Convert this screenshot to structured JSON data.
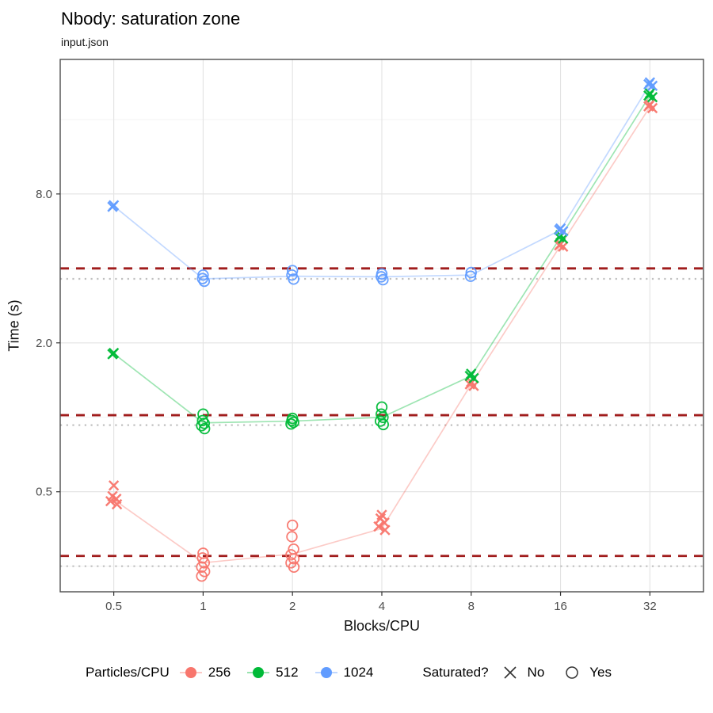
{
  "chart_data": {
    "type": "scatter",
    "title": "Nbody: saturation zone",
    "subtitle": "input.json",
    "xlabel": "Blocks/CPU",
    "ylabel": "Time (s)",
    "x_scale": "log2",
    "y_scale": "log10",
    "xlim": [
      0.33,
      48.5
    ],
    "ylim": [
      0.197,
      28.0
    ],
    "x_ticks": {
      "values": [
        0.5,
        1,
        2,
        4,
        8,
        16,
        32
      ],
      "labels": [
        "0.5",
        "1",
        "2",
        "4",
        "8",
        "16",
        "32"
      ]
    },
    "y_ticks": {
      "values": [
        0.5,
        2.0,
        8.0
      ],
      "labels": [
        "0.5",
        "2.0",
        "8.0"
      ]
    },
    "y_minor_gridlines": [
      0.25,
      1,
      4,
      16
    ],
    "grid": true,
    "legend": {
      "position": "bottom",
      "color_title": "Particles/CPU",
      "shape_title": "Saturated?",
      "no_label": "No",
      "yes_label": "Yes"
    },
    "colors": {
      "grid_major": "#e3e3e3",
      "grid_minor": "#f0f0f0",
      "panel_border": "#4d4d4d",
      "dashed_line": "#a01c1c",
      "dotted_line": "#c0c0c0",
      "tick_text": "#4d4d4d",
      "tick_mark": "#333333"
    },
    "series": [
      {
        "name": "256",
        "color": "#F8766D",
        "threshold_dashed": 0.275,
        "baseline_dotted": 0.25,
        "trend": [
          0.465,
          0.258,
          0.28,
          0.355,
          1.36,
          4.95,
          18.0
        ],
        "groups": [
          {
            "x": 0.5,
            "saturated": false,
            "times": [
              0.53,
              0.48,
              0.468,
              0.458,
              0.445
            ]
          },
          {
            "x": 1,
            "saturated": true,
            "times": [
              0.282,
              0.27,
              0.258,
              0.248,
              0.238,
              0.228
            ]
          },
          {
            "x": 2,
            "saturated": true,
            "times": [
              0.366,
              0.329,
              0.293,
              0.278,
              0.268,
              0.258,
              0.248
            ]
          },
          {
            "x": 4,
            "saturated": false,
            "times": [
              0.403,
              0.39,
              0.375,
              0.362,
              0.35
            ]
          },
          {
            "x": 8,
            "saturated": false,
            "times": [
              1.39,
              1.36,
              1.34
            ]
          },
          {
            "x": 16,
            "saturated": false,
            "times": [
              5.02,
              4.96,
              4.9
            ]
          },
          {
            "x": 32,
            "saturated": false,
            "times": [
              18.4,
              18.1,
              17.8
            ]
          }
        ]
      },
      {
        "name": "512",
        "color": "#00BA38",
        "threshold_dashed": 1.02,
        "baseline_dotted": 0.93,
        "trend": [
          1.81,
          0.95,
          0.965,
          1.0,
          1.47,
          5.35,
          20.0
        ],
        "groups": [
          {
            "x": 0.5,
            "saturated": false,
            "times": [
              1.82,
              1.8
            ]
          },
          {
            "x": 1,
            "saturated": true,
            "times": [
              1.03,
              0.97,
              0.945,
              0.925,
              0.9
            ]
          },
          {
            "x": 2,
            "saturated": true,
            "times": [
              0.99,
              0.97,
              0.955,
              0.94
            ]
          },
          {
            "x": 4,
            "saturated": true,
            "times": [
              1.1,
              1.03,
              1.0,
              0.965,
              0.935
            ]
          },
          {
            "x": 8,
            "saturated": false,
            "times": [
              1.5,
              1.47,
              1.44
            ]
          },
          {
            "x": 16,
            "saturated": false,
            "times": [
              5.45,
              5.35,
              5.28
            ]
          },
          {
            "x": 32,
            "saturated": false,
            "times": [
              20.4,
              20.0,
              19.7
            ]
          }
        ]
      },
      {
        "name": "1024",
        "color": "#619CFF",
        "threshold_dashed": 4.0,
        "baseline_dotted": 3.63,
        "trend": [
          7.15,
          3.63,
          3.72,
          3.7,
          3.76,
          5.72,
          22.2
        ],
        "groups": [
          {
            "x": 0.5,
            "saturated": false,
            "times": [
              7.2,
              7.1
            ]
          },
          {
            "x": 1,
            "saturated": true,
            "times": [
              3.76,
              3.64,
              3.55
            ]
          },
          {
            "x": 2,
            "saturated": true,
            "times": [
              3.92,
              3.76,
              3.62
            ]
          },
          {
            "x": 4,
            "saturated": true,
            "times": [
              3.8,
              3.7,
              3.6
            ]
          },
          {
            "x": 8,
            "saturated": true,
            "times": [
              3.85,
              3.72
            ]
          },
          {
            "x": 16,
            "saturated": false,
            "times": [
              5.8,
              5.72,
              5.65
            ]
          },
          {
            "x": 32,
            "saturated": false,
            "times": [
              22.6,
              22.2,
              21.9
            ]
          }
        ]
      }
    ]
  }
}
